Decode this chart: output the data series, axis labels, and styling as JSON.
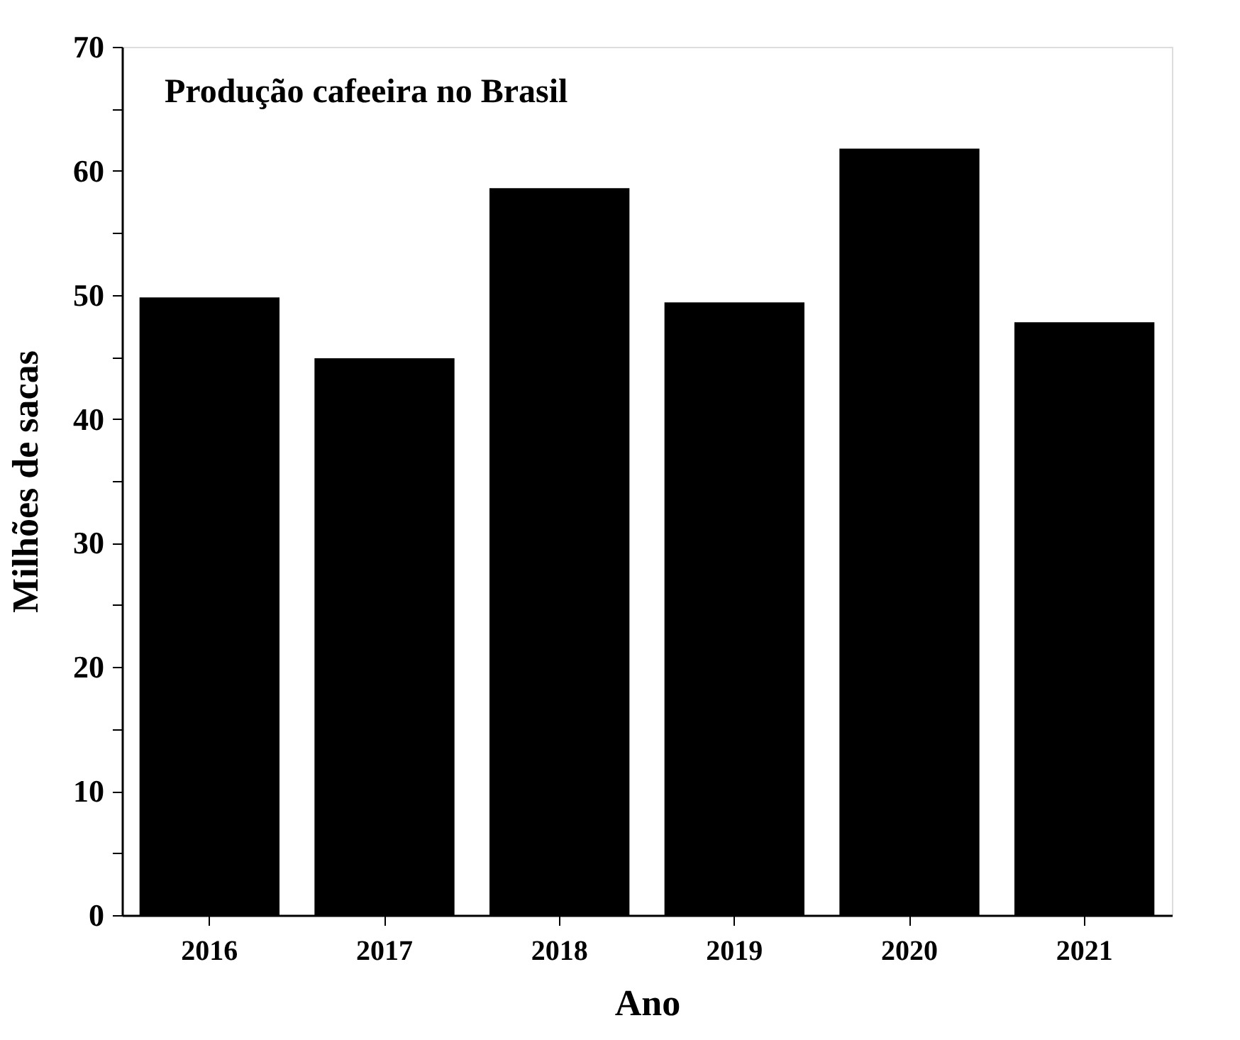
{
  "chart_data": {
    "type": "bar",
    "title": "Produção cafeeira no Brasil",
    "xlabel": "Ano",
    "ylabel": "Milhões de sacas",
    "categories": [
      "2016",
      "2017",
      "2018",
      "2019",
      "2020",
      "2021"
    ],
    "values": [
      49.8,
      44.9,
      58.6,
      49.4,
      61.8,
      47.8
    ],
    "color": "#000000",
    "ylim": [
      0,
      70
    ],
    "yticks": [
      0,
      {
        "value": 5,
        "label": null
      },
      10,
      {
        "value": 15,
        "label": null
      },
      20,
      {
        "value": 25,
        "label": null
      },
      30,
      {
        "value": 35,
        "label": null
      },
      40,
      {
        "value": 45,
        "label": null
      },
      50,
      {
        "value": 55,
        "label": null
      },
      60,
      {
        "value": 65,
        "label": null
      },
      70
    ],
    "grid": false
  }
}
